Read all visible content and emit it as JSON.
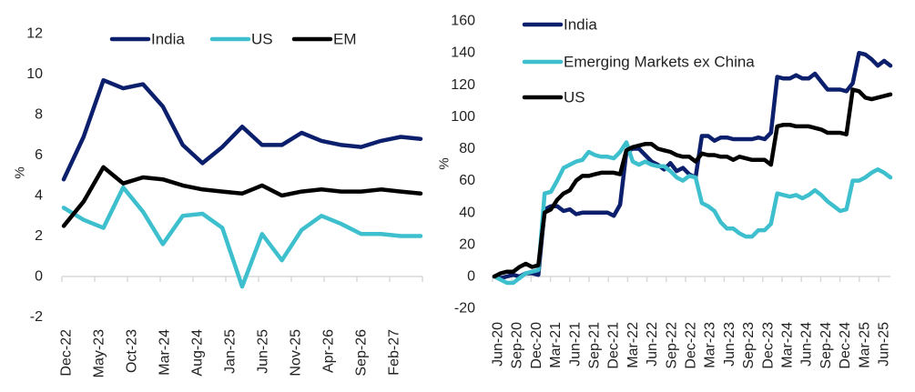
{
  "chart_data": [
    {
      "type": "line",
      "ylabel": "%",
      "ylim": [
        -2,
        12
      ],
      "yticks": [
        "12",
        "10",
        "8",
        "6",
        "4",
        "2",
        "0",
        "-2"
      ],
      "ytick_values": [
        12,
        10,
        8,
        6,
        4,
        2,
        0,
        -2
      ],
      "xtick_labels": [
        "Dec-22",
        "May-23",
        "Oct-23",
        "Mar-24",
        "Aug-24",
        "Jan-25",
        "Jun-25",
        "Nov-25",
        "Apr-26",
        "Sep-26",
        "Feb-27"
      ],
      "x_start": "Dec-22",
      "frequency": "quarterly",
      "grid": false,
      "legend_position": "top",
      "series": [
        {
          "name": "India",
          "color": "#0b1f6c",
          "values": [
            4.8,
            6.9,
            9.7,
            9.3,
            9.5,
            8.4,
            6.5,
            5.6,
            6.4,
            7.4,
            6.5,
            6.5,
            7.1,
            6.7,
            6.5,
            6.4,
            6.7,
            6.9,
            6.8
          ]
        },
        {
          "name": "US",
          "color": "#3dbfce",
          "values": [
            3.4,
            2.8,
            2.4,
            4.4,
            3.2,
            1.6,
            3.0,
            3.1,
            2.4,
            -0.5,
            2.1,
            0.8,
            2.3,
            3.0,
            2.6,
            2.1,
            2.1,
            2.0,
            2.0
          ]
        },
        {
          "name": "EM",
          "color": "#000000",
          "values": [
            2.5,
            3.7,
            5.4,
            4.6,
            4.9,
            4.8,
            4.5,
            4.3,
            4.2,
            4.1,
            4.5,
            4.0,
            4.2,
            4.3,
            4.2,
            4.2,
            4.3,
            4.2,
            4.1
          ]
        }
      ]
    },
    {
      "type": "line",
      "ylabel": "%",
      "ylim": [
        -20,
        160
      ],
      "yticks": [
        "160",
        "140",
        "120",
        "100",
        "80",
        "60",
        "40",
        "20",
        "0",
        "-20"
      ],
      "ytick_values": [
        160,
        140,
        120,
        100,
        80,
        60,
        40,
        20,
        0,
        -20
      ],
      "xtick_labels": [
        "Jun-20",
        "Sep-20",
        "Dec-20",
        "Mar-21",
        "Jun-21",
        "Sep-21",
        "Dec-21",
        "Mar-22",
        "Jun-22",
        "Sep-22",
        "Dec-22",
        "Mar-23",
        "Jun-23",
        "Sep-23",
        "Dec-23",
        "Mar-24",
        "Jun-24",
        "Sep-24",
        "Dec-24",
        "Mar-25",
        "Jun-25"
      ],
      "x_start": "Jun-20",
      "frequency": "monthly",
      "grid": false,
      "legend_position": "top-left",
      "series": [
        {
          "name": "India",
          "color": "#0b1f6c",
          "values": [
            0,
            -1,
            0,
            1,
            0,
            2,
            2,
            1,
            42,
            44,
            44,
            41,
            42,
            39,
            40,
            40,
            40,
            40,
            40,
            38,
            45,
            78,
            80,
            80,
            76,
            72,
            70,
            67,
            71,
            66,
            68,
            64,
            62,
            88,
            88,
            85,
            87,
            87,
            86,
            86,
            86,
            86,
            87,
            86,
            90,
            125,
            124,
            124,
            126,
            124,
            124,
            127,
            122,
            117,
            117,
            117,
            116,
            121,
            140,
            139,
            136,
            132,
            135,
            132
          ]
        },
        {
          "name": "Emerging Markets ex China",
          "color": "#3dbfce",
          "values": [
            0,
            -2,
            -4,
            -4,
            -1,
            2,
            3,
            4,
            52,
            53,
            60,
            68,
            70,
            72,
            73,
            78,
            76,
            75,
            75,
            74,
            78,
            84,
            72,
            70,
            72,
            70,
            69,
            69,
            66,
            62,
            60,
            63,
            62,
            46,
            44,
            41,
            34,
            30,
            30,
            27,
            25,
            25,
            29,
            29,
            33,
            52,
            51,
            50,
            51,
            49,
            51,
            54,
            51,
            47,
            44,
            41,
            42,
            60,
            60,
            62,
            65,
            67,
            65,
            62
          ]
        },
        {
          "name": "US",
          "color": "#000000",
          "values": [
            0,
            2,
            3,
            3,
            6,
            8,
            6,
            7,
            40,
            42,
            48,
            52,
            54,
            60,
            63,
            63,
            64,
            65,
            65,
            65,
            64,
            79,
            81,
            82,
            83,
            83,
            80,
            79,
            78,
            76,
            75,
            75,
            72,
            77,
            76,
            76,
            75,
            75,
            73,
            75,
            74,
            73,
            73,
            73,
            70,
            94,
            95,
            95,
            94,
            94,
            94,
            93,
            92,
            90,
            90,
            90,
            89,
            117,
            116,
            112,
            111,
            112,
            113,
            114
          ]
        }
      ]
    }
  ]
}
